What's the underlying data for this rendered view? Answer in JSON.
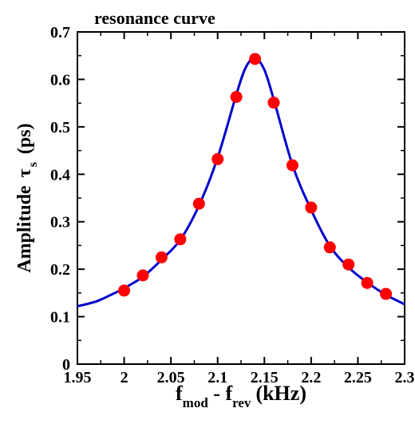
{
  "chart_data": {
    "type": "scatter",
    "title": "resonance curve",
    "xlabel": {
      "main1": "f",
      "sub1": "mod",
      "sep": " - ",
      "main2": "f",
      "sub2": "rev",
      "unit": "(kHz)"
    },
    "ylabel": {
      "prefix": "Amplitude",
      "symbol": "τ",
      "sub": "s",
      "unit": "(ps)"
    },
    "xlim": [
      1.95,
      2.3
    ],
    "ylim": [
      0,
      0.7
    ],
    "xticks": [
      1.95,
      2,
      2.05,
      2.1,
      2.15,
      2.2,
      2.25,
      2.3
    ],
    "xtick_labels": [
      "1.95",
      "2",
      "2.05",
      "2.1",
      "2.15",
      "2.2",
      "2.25",
      "2.3"
    ],
    "yticks": [
      0,
      0.1,
      0.2,
      0.3,
      0.4,
      0.5,
      0.6,
      0.7
    ],
    "ytick_labels": [
      "0",
      "0.1",
      "0.2",
      "0.3",
      "0.4",
      "0.5",
      "0.6",
      "0.7"
    ],
    "grid": false,
    "legend": "none",
    "series": [
      {
        "kind": "points",
        "color": "#ff0000",
        "x": [
          2.0,
          2.02,
          2.04,
          2.06,
          2.08,
          2.1,
          2.12,
          2.14,
          2.16,
          2.18,
          2.2,
          2.22,
          2.24,
          2.26,
          2.28
        ],
        "y": [
          0.155,
          0.187,
          0.225,
          0.263,
          0.338,
          0.432,
          0.563,
          0.643,
          0.551,
          0.419,
          0.33,
          0.246,
          0.21,
          0.171,
          0.148
        ]
      },
      {
        "kind": "fit-line",
        "color": "#0000cc",
        "x": [
          1.95,
          1.97,
          1.99,
          2.0,
          2.02,
          2.04,
          2.06,
          2.08,
          2.1,
          2.12,
          2.13,
          2.14,
          2.15,
          2.16,
          2.18,
          2.2,
          2.22,
          2.24,
          2.26,
          2.28,
          2.3
        ],
        "y": [
          0.122,
          0.132,
          0.15,
          0.16,
          0.184,
          0.22,
          0.262,
          0.334,
          0.435,
          0.568,
          0.625,
          0.645,
          0.62,
          0.558,
          0.42,
          0.325,
          0.249,
          0.204,
          0.172,
          0.146,
          0.126
        ]
      }
    ]
  }
}
